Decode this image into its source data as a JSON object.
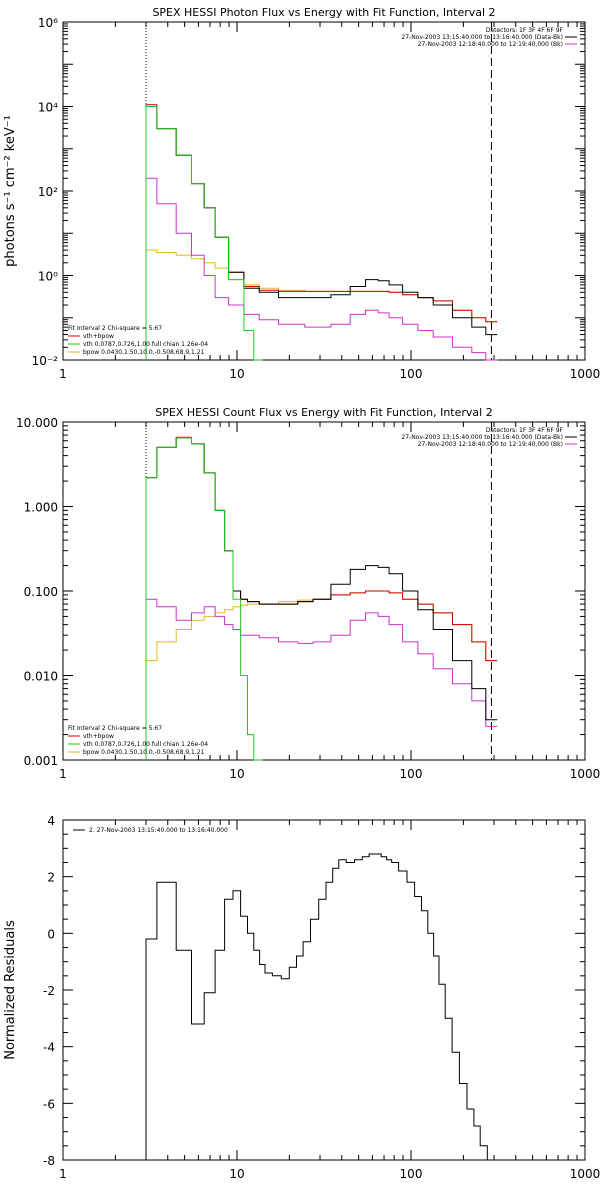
{
  "colors": {
    "data": "#000000",
    "total": "#cc0000",
    "vth": "#22cc22",
    "bpow": "#ddbb22",
    "background": "#cc33cc"
  },
  "chart_data": [
    {
      "type": "line",
      "title": "SPEX HESSI Photon Flux vs Energy with Fit Function, Interval 2",
      "ylabel": "photons s⁻¹ cm⁻² keV⁻¹",
      "xlim": [
        1,
        1000
      ],
      "ylim": [
        0.01,
        1000000
      ],
      "xscale": "log",
      "yscale": "log",
      "x_tick_labels": [
        "1",
        "10",
        "100",
        "1000"
      ],
      "y_tick_labels": [
        "10⁻²",
        "10⁰",
        "10²",
        "10⁴",
        "10⁶"
      ],
      "energy_range_keV": [
        3,
        290
      ],
      "legend_top_right": [
        "Detectors: 1F 3F 4F 6F 9F",
        "27-Nov-2003 13:15:40.000 to 13:16:40.000 (Data-Bk)",
        "27-Nov-2003 12:18:40.000 to 12:19:40.000 (Bk)"
      ],
      "legend_bottom_left": [
        "Fit Interval 2    Chi-square = 5.67",
        "vth+bpow",
        "vth 0.0787,0.726,1.00  full chian 1.26e-04",
        "bpow 0.0430,1.50,10.0,-0.508,68.9,1.21"
      ],
      "series": [
        {
          "name": "(Data-Bk)",
          "x": [
            3,
            4,
            5,
            6,
            7,
            8,
            10,
            12,
            15,
            20,
            30,
            40,
            50,
            60,
            70,
            80,
            100,
            120,
            150,
            200,
            250,
            290
          ],
          "values": [
            10000,
            3000,
            700,
            150,
            40,
            8,
            1.2,
            0.5,
            0.4,
            0.3,
            0.3,
            0.35,
            0.55,
            0.8,
            0.75,
            0.6,
            0.4,
            0.3,
            0.2,
            0.1,
            0.06,
            0.04
          ]
        },
        {
          "name": "vth+bpow",
          "x": [
            3,
            4,
            5,
            6,
            7,
            8,
            10,
            12,
            15,
            20,
            30,
            40,
            50,
            60,
            70,
            80,
            100,
            120,
            150,
            200,
            250,
            290
          ],
          "values": [
            11000,
            3000,
            700,
            150,
            40,
            8,
            1.2,
            0.55,
            0.45,
            0.42,
            0.42,
            0.42,
            0.42,
            0.42,
            0.42,
            0.4,
            0.35,
            0.3,
            0.25,
            0.15,
            0.1,
            0.08
          ]
        },
        {
          "name": "vth",
          "x": [
            3,
            4,
            5,
            6,
            7,
            8,
            10,
            12,
            13
          ],
          "values": [
            10000,
            3000,
            700,
            150,
            40,
            8,
            0.8,
            0.05,
            0.01
          ]
        },
        {
          "name": "bpow",
          "x": [
            3,
            4,
            5,
            6,
            7,
            8,
            10,
            12,
            15,
            20,
            30,
            40,
            50,
            60,
            70,
            80,
            100,
            120,
            150,
            200,
            250,
            290
          ],
          "values": [
            4,
            3.5,
            3,
            2.5,
            2,
            1.5,
            0.8,
            0.6,
            0.5,
            0.45,
            0.42,
            0.42,
            0.42,
            0.42,
            0.42,
            0.4,
            0.35,
            0.3,
            0.25,
            0.15,
            0.1,
            0.08
          ]
        },
        {
          "name": "(Bk)",
          "x": [
            3,
            4,
            5,
            6,
            7,
            8,
            10,
            12,
            15,
            20,
            30,
            40,
            50,
            60,
            70,
            80,
            100,
            120,
            150,
            200,
            250,
            290
          ],
          "values": [
            200,
            50,
            10,
            3,
            1,
            0.3,
            0.2,
            0.12,
            0.09,
            0.07,
            0.06,
            0.07,
            0.12,
            0.15,
            0.13,
            0.1,
            0.07,
            0.05,
            0.035,
            0.02,
            0.015,
            0.01
          ]
        }
      ]
    },
    {
      "type": "line",
      "title": "SPEX HESSI Count Flux vs Energy with Fit Function, Interval 2",
      "ylabel": "",
      "xlim": [
        1,
        1000
      ],
      "ylim": [
        0.001,
        10
      ],
      "xscale": "log",
      "yscale": "log",
      "x_tick_labels": [
        "1",
        "10",
        "100",
        "1000"
      ],
      "y_tick_labels": [
        "10.000",
        "1.000",
        "0.100",
        "0.010",
        "0.001"
      ],
      "energy_range_keV": [
        3,
        290
      ],
      "legend_top_right": [
        "Detectors: 1F 3F 4F 6F 9F",
        "27-Nov-2003 13:15:40.000 to 13:16:40.000 (Data-Bk)",
        "27-Nov-2003 12:18:40.000 to 12:19:40.000 (Bk)"
      ],
      "legend_bottom_left": [
        "Fit Interval 2    Chi-square = 5.67",
        "vth+bpow",
        "vth 0.0787,0.726,1.00  full chian 1.26e-04",
        "bpow 0.0430,1.50,10.0,-0.508,68.9,1.21"
      ],
      "series": [
        {
          "name": "(Data-Bk)",
          "x": [
            3,
            4,
            5,
            6,
            7,
            8,
            9,
            10,
            11,
            12,
            15,
            20,
            25,
            30,
            40,
            50,
            60,
            70,
            80,
            100,
            120,
            150,
            200,
            250,
            290
          ],
          "values": [
            2.2,
            5,
            6.5,
            5.5,
            2.5,
            0.9,
            0.3,
            0.1,
            0.08,
            0.075,
            0.07,
            0.07,
            0.075,
            0.08,
            0.12,
            0.18,
            0.2,
            0.19,
            0.16,
            0.1,
            0.06,
            0.035,
            0.015,
            0.007,
            0.003
          ]
        },
        {
          "name": "vth+bpow",
          "x": [
            3,
            4,
            5,
            6,
            7,
            8,
            9,
            10,
            11,
            12,
            15,
            20,
            25,
            30,
            40,
            50,
            60,
            70,
            80,
            100,
            120,
            150,
            200,
            250,
            290
          ],
          "values": [
            2.2,
            5,
            6.6,
            5.5,
            2.5,
            0.9,
            0.3,
            0.1,
            0.08,
            0.075,
            0.07,
            0.07,
            0.075,
            0.08,
            0.09,
            0.095,
            0.1,
            0.1,
            0.095,
            0.08,
            0.07,
            0.055,
            0.04,
            0.025,
            0.015
          ]
        },
        {
          "name": "vth",
          "x": [
            3,
            4,
            5,
            6,
            7,
            8,
            9,
            10,
            11,
            12,
            13
          ],
          "values": [
            2.2,
            5,
            6.5,
            5.5,
            2.5,
            0.9,
            0.3,
            0.08,
            0.01,
            0.002,
            0.001
          ]
        },
        {
          "name": "bpow",
          "x": [
            3,
            4,
            5,
            6,
            7,
            8,
            9,
            10,
            11,
            12,
            15,
            20,
            25,
            30,
            40,
            50,
            60,
            70,
            80,
            100,
            120,
            150,
            200,
            250,
            290
          ],
          "values": [
            0.015,
            0.025,
            0.035,
            0.045,
            0.05,
            0.055,
            0.06,
            0.065,
            0.068,
            0.07,
            0.07,
            0.075,
            0.078,
            0.08,
            0.09,
            0.095,
            0.1,
            0.1,
            0.095,
            0.08,
            0.07,
            0.055,
            0.04,
            0.025,
            0.015
          ]
        },
        {
          "name": "(Bk)",
          "x": [
            3,
            4,
            5,
            6,
            7,
            8,
            9,
            10,
            11,
            12,
            15,
            20,
            25,
            30,
            40,
            50,
            60,
            70,
            80,
            100,
            120,
            150,
            200,
            250,
            290
          ],
          "values": [
            0.08,
            0.065,
            0.045,
            0.055,
            0.065,
            0.05,
            0.04,
            0.035,
            0.03,
            0.03,
            0.028,
            0.025,
            0.024,
            0.025,
            0.03,
            0.045,
            0.055,
            0.05,
            0.04,
            0.025,
            0.018,
            0.012,
            0.008,
            0.005,
            0.0025
          ]
        }
      ]
    },
    {
      "type": "line",
      "title": "",
      "ylabel": "Normalized Residuals",
      "xlim": [
        1,
        1000
      ],
      "ylim": [
        -8,
        4
      ],
      "xscale": "log",
      "yscale": "linear",
      "x_tick_labels": [
        "1",
        "10",
        "100",
        "1000"
      ],
      "y_tick_labels": [
        "4",
        "2",
        "0",
        "-2",
        "-4",
        "-6",
        "-8"
      ],
      "legend": "2. 27-Nov-2003 13:15:40.000 to 13:16:40.000",
      "series": [
        {
          "name": "2. 27-Nov-2003 13:15:40.000 to 13:16:40.000",
          "x": [
            3,
            4,
            5,
            6,
            7,
            8,
            9,
            10,
            11,
            12,
            13,
            14,
            15,
            17,
            19,
            21,
            23,
            25,
            28,
            31,
            34,
            37,
            40,
            45,
            50,
            55,
            60,
            65,
            70,
            75,
            80,
            90,
            100,
            110,
            120,
            130,
            140,
            150,
            165,
            180,
            200,
            220,
            240,
            260,
            290
          ],
          "values": [
            -0.2,
            1.8,
            -0.6,
            -3.2,
            -2.1,
            -0.6,
            1.2,
            1.5,
            0.6,
            0.0,
            -0.6,
            -1.1,
            -1.4,
            -1.5,
            -1.6,
            -1.2,
            -0.8,
            -0.3,
            0.5,
            1.2,
            1.8,
            2.3,
            2.6,
            2.5,
            2.6,
            2.7,
            2.8,
            2.8,
            2.7,
            2.6,
            2.5,
            2.2,
            1.8,
            1.3,
            0.8,
            0.0,
            -0.8,
            -1.8,
            -3.0,
            -4.2,
            -5.3,
            -6.2,
            -6.8,
            -7.5,
            -8.0
          ]
        }
      ]
    }
  ]
}
